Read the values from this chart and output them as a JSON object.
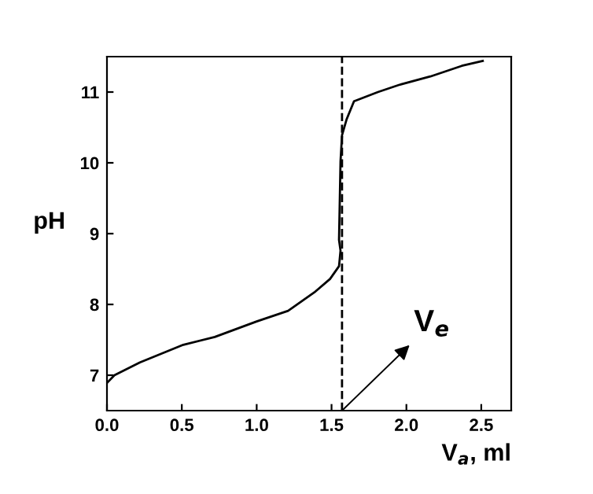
{
  "chart_data": {
    "type": "line",
    "xlabel": "V$_{a}$, ml",
    "ylabel": "pH",
    "x": [
      0,
      0.05,
      0.22,
      0.51,
      0.72,
      1.0,
      1.21,
      1.385,
      1.49,
      1.55,
      1.56,
      1.55,
      1.56,
      1.57,
      1.6,
      1.65,
      1.81,
      1.95,
      2.16,
      2.37,
      2.51
    ],
    "series": [
      {
        "color": "#000000",
        "values": [
          6.89,
          7.0,
          7.18,
          7.43,
          7.54,
          7.76,
          7.91,
          8.17,
          8.36,
          8.54,
          8.76,
          8.91,
          10.02,
          10.39,
          10.61,
          10.87,
          11.0,
          11.1,
          11.22,
          11.37,
          11.44
        ]
      }
    ],
    "xlim": [
      0,
      2.7
    ],
    "ylim": [
      6.5,
      11.5
    ],
    "xticks": [
      {
        "value": 0,
        "label": "0.0"
      },
      0.5,
      {
        "value": 1,
        "label": "1.0"
      },
      1.5,
      {
        "value": 2,
        "label": "2.0"
      },
      2.5
    ],
    "yticks": [
      7,
      8,
      9,
      10,
      11
    ],
    "ref_lines": [
      {
        "axis": "x",
        "value": 1.57,
        "line_style": "dashed",
        "color": "#000000"
      }
    ],
    "annotations": [
      {
        "text": "V$_{e}$",
        "x": 1.57,
        "y": 6.5
      }
    ],
    "marker": "none",
    "line_style": "solid",
    "grid": false,
    "legend": false
  }
}
